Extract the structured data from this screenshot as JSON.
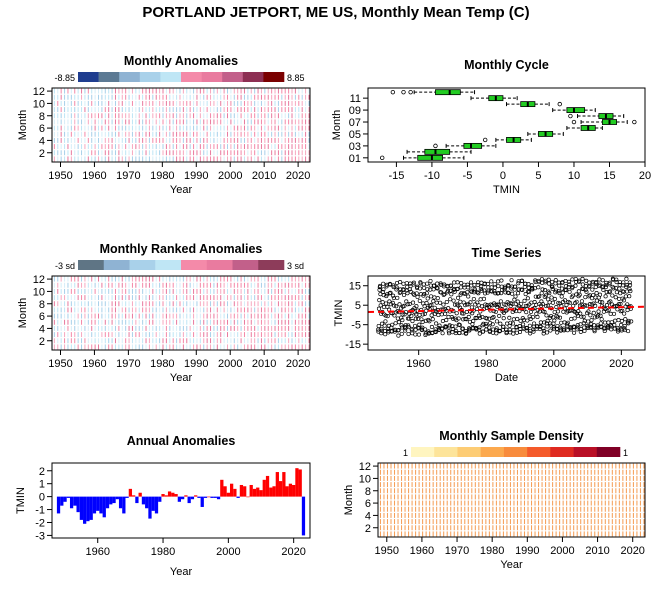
{
  "page_title": "PORTLAND JETPORT, ME US, Monthly Mean Temp (C)",
  "chart_data": [
    {
      "id": "monthly-anomalies",
      "type": "heatmap",
      "title": "Monthly Anomalies",
      "xlabel": "Year",
      "ylabel": "Month",
      "xlim": [
        1948,
        2023
      ],
      "ylim": [
        0.5,
        12.5
      ],
      "xticks": [
        1950,
        1960,
        1970,
        1980,
        1990,
        2000,
        2010,
        2020
      ],
      "yticks": [
        2,
        4,
        6,
        8,
        10,
        12
      ],
      "legend": {
        "position": "top",
        "min_label": "-8.85",
        "max_label": "8.85",
        "colors": [
          "#1f3d8f",
          "#5c7a94",
          "#8fb3d3",
          "#a9d1ea",
          "#bfe6f5",
          "#f48aa9",
          "#e97b9f",
          "#c2608a",
          "#8d2f53",
          "#7a0000"
        ]
      },
      "years": [
        1948,
        2023
      ]
    },
    {
      "id": "monthly-cycle",
      "type": "boxplot",
      "title": "Monthly Cycle",
      "xlabel": "TMIN",
      "ylabel": "Month",
      "xlim": [
        -19,
        20
      ],
      "xticks": [
        -15,
        -10,
        -5,
        0,
        5,
        10,
        15,
        20
      ],
      "ytick_labels": [
        "01",
        "03",
        "05",
        "07",
        "09",
        "11"
      ],
      "box_color": "#22cc22",
      "boxes": [
        {
          "month": 1,
          "wmin": -14.0,
          "q1": -12.0,
          "median": -10.0,
          "q3": -8.5,
          "wmax": -5.5,
          "outliers": [
            -17.0
          ]
        },
        {
          "month": 2,
          "wmin": -13.5,
          "q1": -11.0,
          "median": -9.5,
          "q3": -7.5,
          "wmax": -4.5,
          "outliers": []
        },
        {
          "month": 3,
          "wmin": -8.0,
          "q1": -5.5,
          "median": -4.5,
          "q3": -3.0,
          "wmax": -1.0,
          "outliers": [
            -9.5
          ]
        },
        {
          "month": 4,
          "wmin": -1.0,
          "q1": 0.5,
          "median": 1.5,
          "q3": 2.5,
          "wmax": 4.0,
          "outliers": [
            -2.5
          ]
        },
        {
          "month": 5,
          "wmin": 3.5,
          "q1": 5.0,
          "median": 6.0,
          "q3": 7.0,
          "wmax": 8.5,
          "outliers": []
        },
        {
          "month": 6,
          "wmin": 9.0,
          "q1": 11.0,
          "median": 12.0,
          "q3": 13.0,
          "wmax": 14.0,
          "outliers": []
        },
        {
          "month": 7,
          "wmin": 11.0,
          "q1": 14.0,
          "median": 15.0,
          "q3": 16.0,
          "wmax": 17.5,
          "outliers": [
            18.5,
            10.0
          ]
        },
        {
          "month": 8,
          "wmin": 10.5,
          "q1": 13.5,
          "median": 14.5,
          "q3": 15.5,
          "wmax": 17.0,
          "outliers": [
            9.5
          ]
        },
        {
          "month": 9,
          "wmin": 7.0,
          "q1": 9.0,
          "median": 10.0,
          "q3": 11.5,
          "wmax": 13.0,
          "outliers": []
        },
        {
          "month": 10,
          "wmin": 0.5,
          "q1": 2.5,
          "median": 3.5,
          "q3": 4.5,
          "wmax": 6.5,
          "outliers": [
            8.0
          ]
        },
        {
          "month": 11,
          "wmin": -4.5,
          "q1": -2.0,
          "median": -1.0,
          "q3": 0.0,
          "wmax": 2.0,
          "outliers": []
        },
        {
          "month": 12,
          "wmin": -12.5,
          "q1": -9.5,
          "median": -7.5,
          "q3": -6.0,
          "wmax": -4.0,
          "outliers": [
            -13.0,
            -14.0,
            -15.5
          ]
        }
      ]
    },
    {
      "id": "monthly-ranked-anomalies",
      "type": "heatmap",
      "title": "Monthly Ranked Anomalies",
      "xlabel": "Year",
      "ylabel": "Month",
      "xlim": [
        1948,
        2023
      ],
      "ylim": [
        0.5,
        12.5
      ],
      "xticks": [
        1950,
        1960,
        1970,
        1980,
        1990,
        2000,
        2010,
        2020
      ],
      "yticks": [
        2,
        4,
        6,
        8,
        10,
        12
      ],
      "legend": {
        "position": "top",
        "min_label": "-3 sd",
        "max_label": "3 sd",
        "colors": [
          "#5f7585",
          "#8fb3d3",
          "#a9d1ea",
          "#bfe6f5",
          "#f48aa9",
          "#e97b9f",
          "#c2608a",
          "#8d3c5a"
        ]
      }
    },
    {
      "id": "time-series",
      "type": "scatter",
      "title": "Time Series",
      "xlabel": "Date",
      "ylabel": "TMIN",
      "xlim": [
        1945,
        2027
      ],
      "ylim": [
        -18,
        20
      ],
      "xticks": [
        1960,
        1980,
        2000,
        2020
      ],
      "yticks": [
        -15,
        -5,
        5,
        15
      ],
      "trend": {
        "color": "#ff0000",
        "style": "dashed",
        "y_start": 1.5,
        "y_end": 4.2
      }
    },
    {
      "id": "annual-anomalies",
      "type": "bar",
      "title": "Annual Anomalies",
      "xlabel": "Year",
      "ylabel": "TMIN",
      "xlim": [
        1946,
        2025
      ],
      "ylim": [
        -3.2,
        2.6
      ],
      "xticks": [
        1960,
        1980,
        2000,
        2020
      ],
      "yticks": [
        -3,
        -2,
        -1,
        0,
        1,
        2
      ],
      "positive_color": "#ff0000",
      "negative_color": "#0000ff",
      "x": [
        1948,
        1949,
        1950,
        1951,
        1952,
        1953,
        1954,
        1955,
        1956,
        1957,
        1958,
        1959,
        1960,
        1961,
        1962,
        1963,
        1964,
        1965,
        1966,
        1967,
        1968,
        1969,
        1970,
        1971,
        1972,
        1973,
        1974,
        1975,
        1976,
        1977,
        1978,
        1979,
        1980,
        1981,
        1982,
        1983,
        1984,
        1985,
        1986,
        1987,
        1988,
        1989,
        1990,
        1991,
        1992,
        1993,
        1994,
        1995,
        1996,
        1997,
        1998,
        1999,
        2000,
        2001,
        2002,
        2003,
        2004,
        2005,
        2006,
        2007,
        2008,
        2009,
        2010,
        2011,
        2012,
        2013,
        2014,
        2015,
        2016,
        2017,
        2018,
        2019,
        2020,
        2021,
        2022,
        2023
      ],
      "values": [
        -1.3,
        -0.7,
        -0.4,
        -0.1,
        -0.9,
        -0.7,
        -1.2,
        -1.8,
        -2.1,
        -1.9,
        -1.8,
        -1.3,
        -1.1,
        -1.3,
        -1.6,
        -0.9,
        -0.6,
        -0.5,
        -0.2,
        -0.9,
        -1.3,
        -0.1,
        0.6,
        0.1,
        -0.5,
        0.3,
        -0.6,
        -0.9,
        -1.7,
        -1.1,
        -1.3,
        -0.4,
        0.2,
        0.1,
        0.4,
        0.3,
        0.2,
        -0.4,
        -0.2,
        0.1,
        -0.5,
        -0.2,
        0.1,
        -0.1,
        -0.8,
        -0.1,
        0.0,
        -0.1,
        -0.1,
        -0.2,
        1.3,
        0.8,
        0.3,
        1.0,
        0.6,
        -0.1,
        0.9,
        0.8,
        0.0,
        0.9,
        0.6,
        0.7,
        0.5,
        1.3,
        1.6,
        0.7,
        0.8,
        1.9,
        1.2,
        1.9,
        0.8,
        1.0,
        0.9,
        2.2,
        2.1,
        -3.0
      ]
    },
    {
      "id": "monthly-sample-density",
      "type": "heatmap",
      "title": "Monthly Sample Density",
      "xlabel": "Year",
      "ylabel": "Month",
      "xlim": [
        1948,
        2023
      ],
      "ylim": [
        0.5,
        12.5
      ],
      "xticks": [
        1950,
        1960,
        1970,
        1980,
        1990,
        2000,
        2010,
        2020
      ],
      "yticks": [
        2,
        4,
        6,
        8,
        10,
        12
      ],
      "legend": {
        "position": "top",
        "min_label": "1",
        "max_label": "1",
        "colors": [
          "#fff5c0",
          "#fde49a",
          "#fdcc74",
          "#fca94e",
          "#f88b3c",
          "#f45a2a",
          "#df2a20",
          "#b90f26",
          "#800026"
        ]
      }
    }
  ]
}
